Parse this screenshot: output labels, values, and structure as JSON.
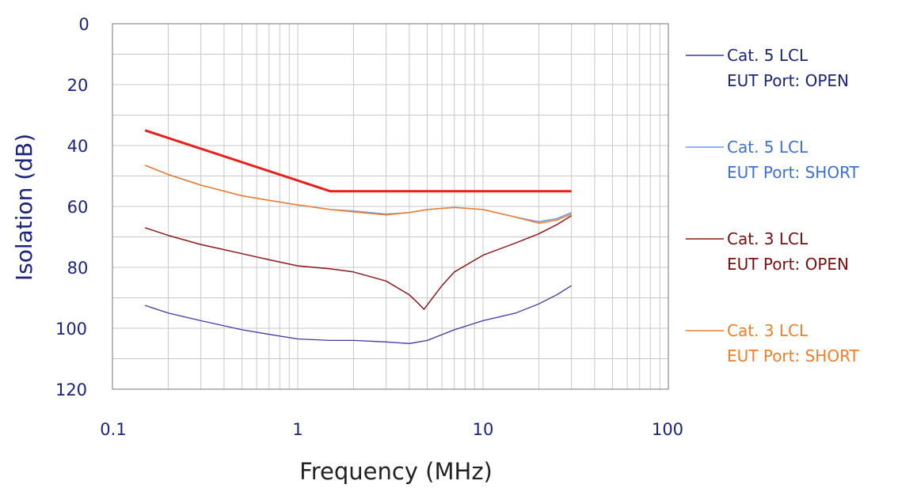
{
  "chart_data": {
    "type": "line",
    "xlabel": "Frequency (MHz)",
    "ylabel": "Isolation (dB)",
    "x_scale": "log",
    "xlim": [
      0.1,
      100
    ],
    "ylim": [
      0,
      120
    ],
    "y_inverted": true,
    "x_ticks": [
      "0.1",
      "1",
      "10",
      "100"
    ],
    "y_ticks": [
      "0",
      "20",
      "40",
      "60",
      "80",
      "100",
      "120"
    ],
    "grid": true,
    "legend_placement": "right",
    "limit_line": {
      "color": "#e8201c",
      "x": [
        0.15,
        1.5,
        30
      ],
      "y": [
        35,
        55,
        55
      ]
    },
    "series": [
      {
        "name": "Cat. 5 LCL",
        "name2": "EUT Port: OPEN",
        "color": "#3a3aa0",
        "label_color": "#1a237e",
        "x": [
          0.15,
          0.2,
          0.3,
          0.5,
          0.7,
          1,
          1.5,
          2,
          3,
          4,
          5,
          7,
          10,
          15,
          20,
          25,
          30
        ],
        "y": [
          92.5,
          95,
          97.5,
          100.5,
          102,
          103.5,
          104,
          104,
          104.5,
          105,
          104,
          100.5,
          97.5,
          95,
          92,
          89,
          86
        ]
      },
      {
        "name": "Cat. 5 LCL",
        "name2": "EUT Port: SHORT",
        "color": "#6a9ae8",
        "label_color": "#3d6fd8",
        "x": [
          0.15,
          0.2,
          0.3,
          0.5,
          0.7,
          1,
          1.5,
          2,
          3,
          4,
          5,
          7,
          10,
          15,
          20,
          25,
          30
        ],
        "y": [
          46.5,
          49.5,
          53,
          56.5,
          58,
          59.5,
          61,
          61.5,
          62.5,
          62,
          61,
          60.3,
          61,
          63.5,
          65,
          64,
          62
        ]
      },
      {
        "name": "Cat. 3 LCL",
        "name2": "EUT Port: OPEN",
        "color": "#8b1a1a",
        "label_color": "#7a0e0e",
        "x": [
          0.15,
          0.2,
          0.3,
          0.5,
          0.7,
          1,
          1.5,
          2,
          3,
          4,
          4.5,
          4.8,
          5.2,
          6,
          7,
          10,
          15,
          20,
          25,
          30
        ],
        "y": [
          67,
          69.5,
          72.5,
          75.5,
          77.5,
          79.5,
          80.5,
          81.5,
          84.5,
          89,
          92,
          93.8,
          91,
          86,
          81.5,
          76,
          72,
          69,
          66,
          63
        ]
      },
      {
        "name": "Cat. 3 LCL",
        "name2": "EUT Port: SHORT",
        "color": "#f07d2a",
        "label_color": "#f07d2a",
        "x": [
          0.15,
          0.2,
          0.3,
          0.5,
          0.7,
          1,
          1.5,
          2,
          3,
          4,
          5,
          7,
          10,
          15,
          20,
          25,
          30
        ],
        "y": [
          46.5,
          49.5,
          53,
          56.5,
          58,
          59.5,
          61,
          61.8,
          62.8,
          62,
          61,
          60.3,
          61,
          63.5,
          65.5,
          64.5,
          62.5
        ]
      }
    ]
  }
}
